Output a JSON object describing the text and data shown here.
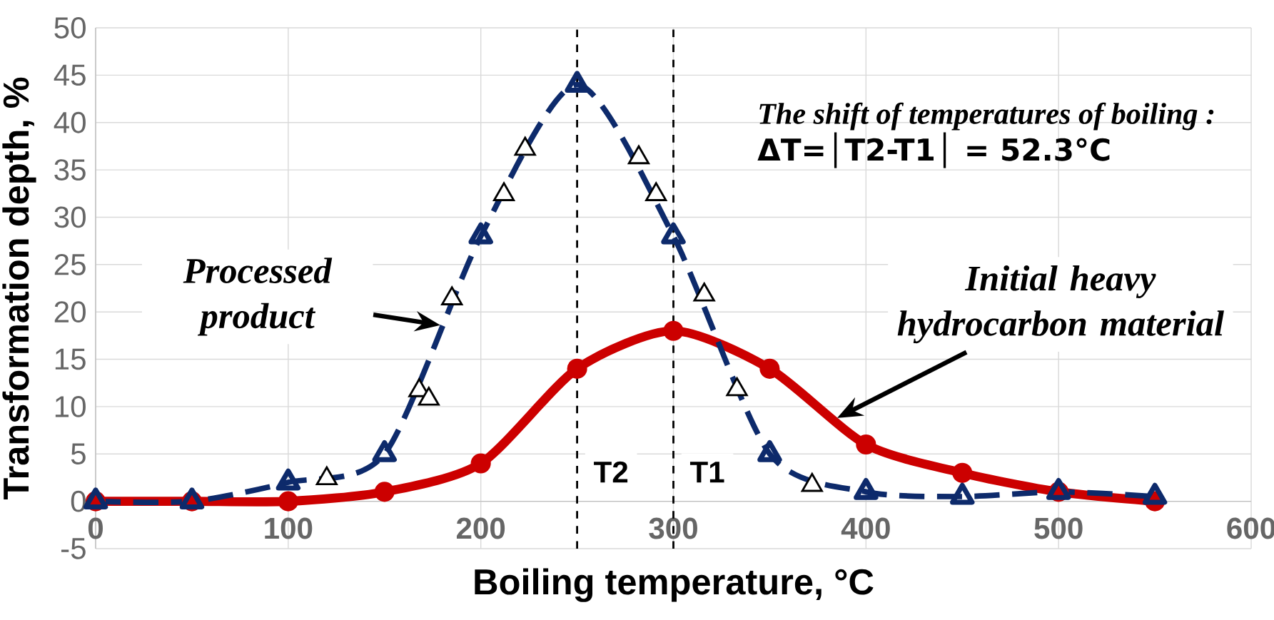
{
  "chart_data": {
    "type": "line",
    "xlabel": "Boiling temperature, °C",
    "ylabel": "Transformation depth, %",
    "xlim": [
      0,
      600
    ],
    "ylim": [
      -5,
      50
    ],
    "xticks": [
      0,
      100,
      200,
      300,
      400,
      500,
      600
    ],
    "yticks": [
      -5,
      0,
      5,
      10,
      15,
      20,
      25,
      30,
      35,
      40,
      45,
      50
    ],
    "grid": true,
    "series": [
      {
        "type": "line",
        "color": "#0d2a6b",
        "line_style": "dashed",
        "marker": "triangle",
        "x": [
          0,
          50,
          100,
          150,
          200,
          250,
          300,
          350,
          400,
          450,
          500,
          550
        ],
        "values": [
          0,
          0,
          2,
          5,
          28,
          44,
          28,
          5,
          1,
          0.5,
          1,
          0.5
        ]
      },
      {
        "type": "scatter",
        "color": "#000000",
        "marker": "triangle",
        "x": [
          120,
          168,
          173,
          185,
          212,
          223,
          282,
          291,
          316,
          333,
          372
        ],
        "values": [
          2.4,
          11.7,
          10.8,
          21.4,
          32.4,
          37.2,
          36.3,
          32.4,
          21.8,
          11.8,
          1.7
        ]
      },
      {
        "type": "line",
        "color": "#cc0000",
        "line_style": "solid",
        "marker": "circle",
        "x": [
          0,
          50,
          100,
          150,
          200,
          250,
          300,
          350,
          400,
          450,
          500,
          550
        ],
        "values": [
          0,
          0,
          0,
          1,
          4,
          14,
          18,
          14,
          6,
          3,
          1,
          0
        ]
      }
    ],
    "ref_lines": [
      {
        "axis": "x",
        "value": 250,
        "label": "T2",
        "color": "#000000",
        "line_style": "dashed"
      },
      {
        "axis": "x",
        "value": 300,
        "label": "T1",
        "color": "#000000",
        "line_style": "dashed"
      }
    ],
    "annotations": [
      {
        "text": "Processed product",
        "x": 179,
        "y": 18.6
      },
      {
        "text": "Initial heavy hydrocarbon material",
        "x": 385,
        "y": 8.8
      },
      "The shift of temperatures of boiling :",
      "ΔT=│T2-T1│ = 52.3°C"
    ]
  }
}
